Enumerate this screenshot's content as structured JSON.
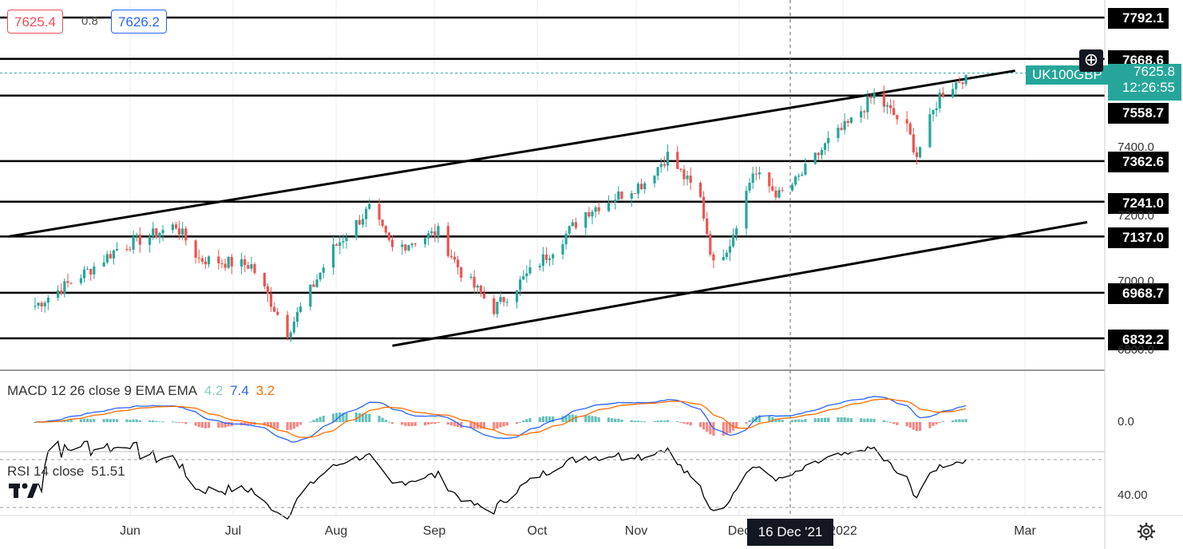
{
  "quote": {
    "bid": "7625.4",
    "spread": "0.8",
    "ask": "7626.2"
  },
  "symbol": "UK100GBP",
  "last_price_label": "7625.8",
  "countdown": "12:26:55",
  "crosshair_date": "16 Dec '21",
  "icons": [
    "plus-icon",
    "gear-icon",
    "tradingview-logo"
  ],
  "colors": {
    "up": "#26a69a",
    "down": "#ef5350",
    "macd": "#2962ff",
    "signal": "#ff6d00",
    "hist_up": "#26a69a",
    "hist_down": "#ef5350",
    "rsi": "#000000"
  },
  "chart_data": {
    "type": "candlestick",
    "x_ticks": [
      "Jun",
      "Jul",
      "Aug",
      "Sep",
      "Oct",
      "Nov",
      "Dec",
      "2022",
      "Mar"
    ],
    "y_ticks": [
      "7400.0",
      "7200.0",
      "7000.0",
      "6800.0"
    ],
    "horizontal_levels": [
      "7792.1",
      "7668.6",
      "7558.7",
      "7362.6",
      "7241.0",
      "7137.0",
      "6968.7",
      "6832.2"
    ],
    "ohlc_anchors": [
      {
        "date": "2021-05-03",
        "close": 6930
      },
      {
        "date": "2021-05-20",
        "close": 7040
      },
      {
        "date": "2021-05-28",
        "close": 7100
      },
      {
        "date": "2021-06-15",
        "close": 7170
      },
      {
        "date": "2021-06-22",
        "close": 7070
      },
      {
        "date": "2021-07-08",
        "close": 7050
      },
      {
        "date": "2021-07-19",
        "close": 6850
      },
      {
        "date": "2021-08-02",
        "close": 7100
      },
      {
        "date": "2021-08-13",
        "close": 7220
      },
      {
        "date": "2021-08-20",
        "close": 7100
      },
      {
        "date": "2021-09-03",
        "close": 7150
      },
      {
        "date": "2021-09-10",
        "close": 7030
      },
      {
        "date": "2021-09-20",
        "close": 6920
      },
      {
        "date": "2021-10-01",
        "close": 7030
      },
      {
        "date": "2021-10-08",
        "close": 7100
      },
      {
        "date": "2021-10-18",
        "close": 7210
      },
      {
        "date": "2021-11-05",
        "close": 7300
      },
      {
        "date": "2021-11-12",
        "close": 7380
      },
      {
        "date": "2021-11-22",
        "close": 7250
      },
      {
        "date": "2021-11-26",
        "close": 7050
      },
      {
        "date": "2021-12-01",
        "close": 7120
      },
      {
        "date": "2021-12-08",
        "close": 7330
      },
      {
        "date": "2021-12-16",
        "close": 7260
      },
      {
        "date": "2021-12-21",
        "close": 7300
      },
      {
        "date": "2021-12-31",
        "close": 7420
      },
      {
        "date": "2022-01-07",
        "close": 7480
      },
      {
        "date": "2022-01-14",
        "close": 7560
      },
      {
        "date": "2022-01-24",
        "close": 7460
      },
      {
        "date": "2022-01-27",
        "close": 7380
      },
      {
        "date": "2022-02-03",
        "close": 7560
      },
      {
        "date": "2022-02-11",
        "close": 7620
      }
    ],
    "indicators": {
      "macd": {
        "label": "MACD 12 26 close 9 EMA EMA",
        "histogram": "4.2",
        "macd": "7.4",
        "signal": "3.2",
        "axis_tick": "0.0"
      },
      "rsi": {
        "label": "RSI 14 close",
        "value": "51.51",
        "axis_tick": "40.00"
      }
    }
  }
}
